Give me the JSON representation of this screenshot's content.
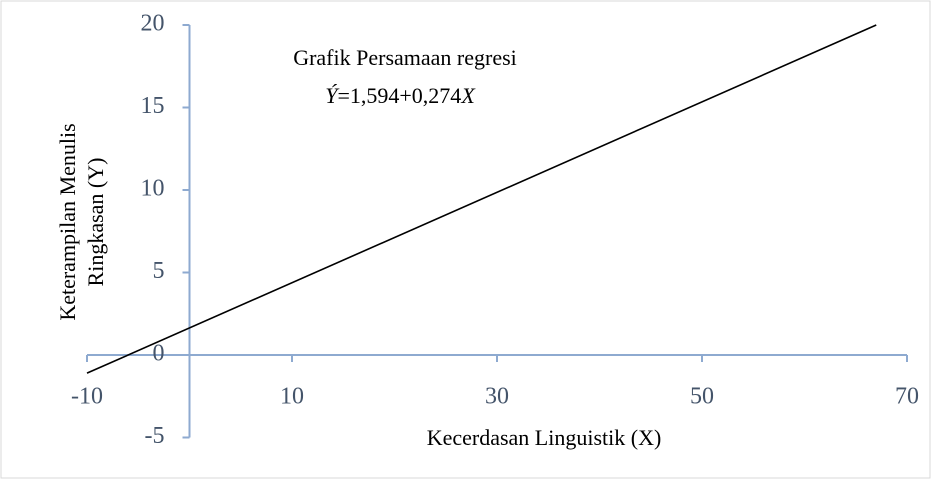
{
  "chart_data": {
    "type": "line",
    "annotation": "Grafik Persamaan regresi",
    "equation": [
      "Ý",
      "=1,594+0,274",
      "X"
    ],
    "x_label": "Kecerdasan Linguistik (X)",
    "y_label": [
      "Keterampilan Menulis",
      "Ringkasan (Y)"
    ],
    "x": [
      -10,
      67
    ],
    "series": [
      {
        "color": "#000000",
        "values": [
          -1.1,
          20
        ]
      }
    ],
    "xlim": [
      -10,
      70
    ],
    "xticks": [
      -10,
      10,
      30,
      50,
      70
    ],
    "ylim": [
      -5,
      20
    ],
    "yticks": [
      -5,
      0,
      5,
      10,
      15,
      20
    ],
    "grid": false
  }
}
